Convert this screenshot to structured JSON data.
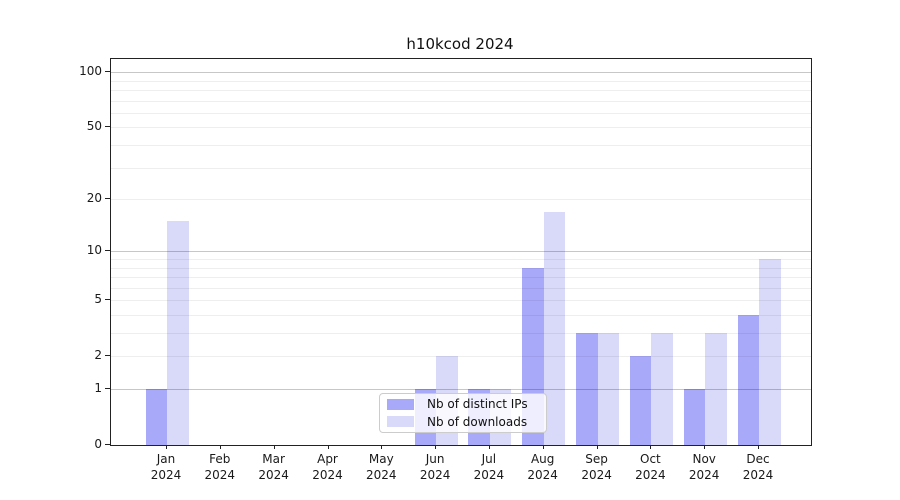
{
  "chart_data": {
    "type": "bar",
    "title": "h10kcod 2024",
    "categories": [
      "Jan",
      "Feb",
      "Mar",
      "Apr",
      "May",
      "Jun",
      "Jul",
      "Aug",
      "Sep",
      "Oct",
      "Nov",
      "Dec"
    ],
    "x_tick_year": "2024",
    "series": [
      {
        "key": "distinct-ips",
        "name": "Nb of distinct IPs",
        "color": "#a9a9fa",
        "values": [
          1,
          0,
          0,
          0,
          0,
          1,
          1,
          8,
          3,
          2,
          1,
          4
        ]
      },
      {
        "key": "downloads",
        "name": "Nb of downloads",
        "color": "#d9d9fa",
        "values": [
          15,
          0,
          0,
          0,
          0,
          2,
          1,
          17,
          3,
          3,
          3,
          9
        ]
      }
    ],
    "yscale": "log1p",
    "ylim": [
      0,
      118
    ],
    "y_ticks": [
      0,
      1,
      2,
      5,
      10,
      20,
      50,
      100
    ],
    "y_major_gridlines": [
      1,
      10,
      100
    ],
    "y_minor_gridlines": [
      2,
      3,
      4,
      5,
      6,
      7,
      8,
      9,
      20,
      30,
      40,
      50,
      60,
      70,
      80,
      90
    ],
    "grid": "horizontal",
    "legend_position": "lower-center"
  }
}
